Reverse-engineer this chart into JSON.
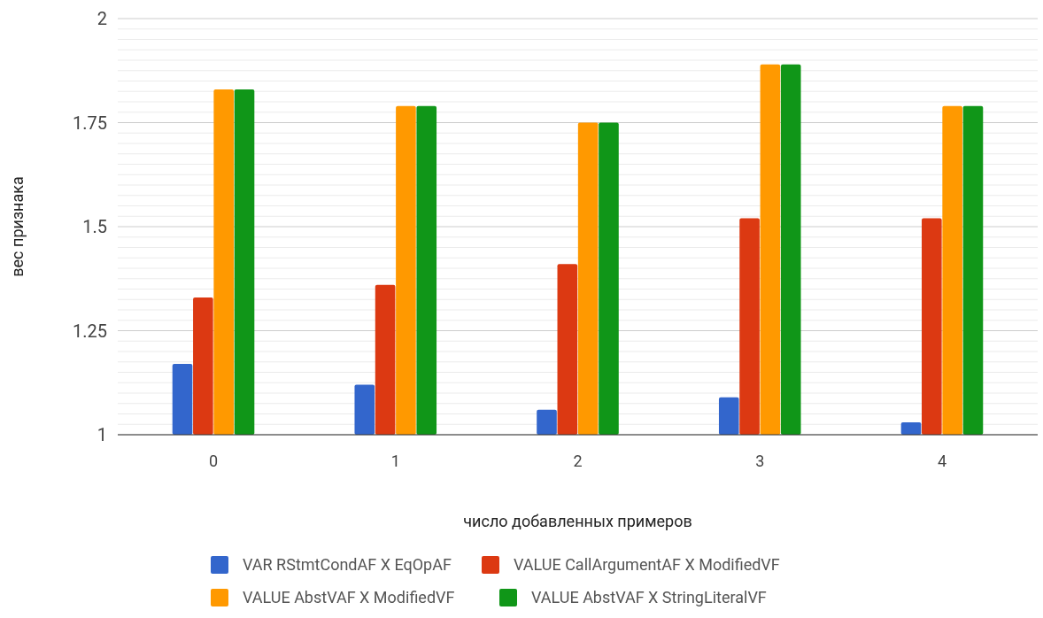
{
  "chart_data": {
    "type": "bar",
    "xlabel": "число добавленных примеров",
    "ylabel": "вес признака",
    "categories": [
      "0",
      "1",
      "2",
      "3",
      "4"
    ],
    "series": [
      {
        "name": "VAR RStmtCondAF X EqOpAF",
        "color": "#3366cc",
        "values": [
          1.17,
          1.12,
          1.06,
          1.09,
          1.03
        ]
      },
      {
        "name": "VALUE CallArgumentAF X ModifiedVF",
        "color": "#dc3912",
        "values": [
          1.33,
          1.36,
          1.41,
          1.52,
          1.52
        ]
      },
      {
        "name": "VALUE AbstVAF X ModifiedVF",
        "color": "#ff9900",
        "values": [
          1.83,
          1.79,
          1.75,
          1.89,
          1.79
        ]
      },
      {
        "name": "VALUE AbstVAF X StringLiteralVF",
        "color": "#109618",
        "values": [
          1.83,
          1.79,
          1.75,
          1.89,
          1.79
        ]
      }
    ],
    "ylim": [
      1,
      2
    ],
    "yticks": [
      1,
      {
        "value": 1.025,
        "label": null
      },
      {
        "value": 1.05,
        "label": null
      },
      {
        "value": 1.075,
        "label": null
      },
      {
        "value": 1.1,
        "label": null
      },
      {
        "value": 1.125,
        "label": null
      },
      {
        "value": 1.15,
        "label": null
      },
      {
        "value": 1.175,
        "label": null
      },
      {
        "value": 1.2,
        "label": null
      },
      {
        "value": 1.225,
        "label": null
      },
      1.25,
      {
        "value": 1.275,
        "label": null
      },
      {
        "value": 1.3,
        "label": null
      },
      {
        "value": 1.325,
        "label": null
      },
      {
        "value": 1.35,
        "label": null
      },
      {
        "value": 1.375,
        "label": null
      },
      {
        "value": 1.4,
        "label": null
      },
      {
        "value": 1.425,
        "label": null
      },
      {
        "value": 1.45,
        "label": null
      },
      {
        "value": 1.475,
        "label": null
      },
      1.5,
      {
        "value": 1.525,
        "label": null
      },
      {
        "value": 1.55,
        "label": null
      },
      {
        "value": 1.575,
        "label": null
      },
      {
        "value": 1.6,
        "label": null
      },
      {
        "value": 1.625,
        "label": null
      },
      {
        "value": 1.65,
        "label": null
      },
      {
        "value": 1.675,
        "label": null
      },
      {
        "value": 1.7,
        "label": null
      },
      {
        "value": 1.725,
        "label": null
      },
      1.75,
      {
        "value": 1.775,
        "label": null
      },
      {
        "value": 1.8,
        "label": null
      },
      {
        "value": 1.825,
        "label": null
      },
      {
        "value": 1.85,
        "label": null
      },
      {
        "value": 1.875,
        "label": null
      },
      {
        "value": 1.9,
        "label": null
      },
      {
        "value": 1.925,
        "label": null
      },
      {
        "value": 1.95,
        "label": null
      },
      {
        "value": 1.975,
        "label": null
      },
      2
    ],
    "grid": true,
    "legend": "bottom"
  }
}
